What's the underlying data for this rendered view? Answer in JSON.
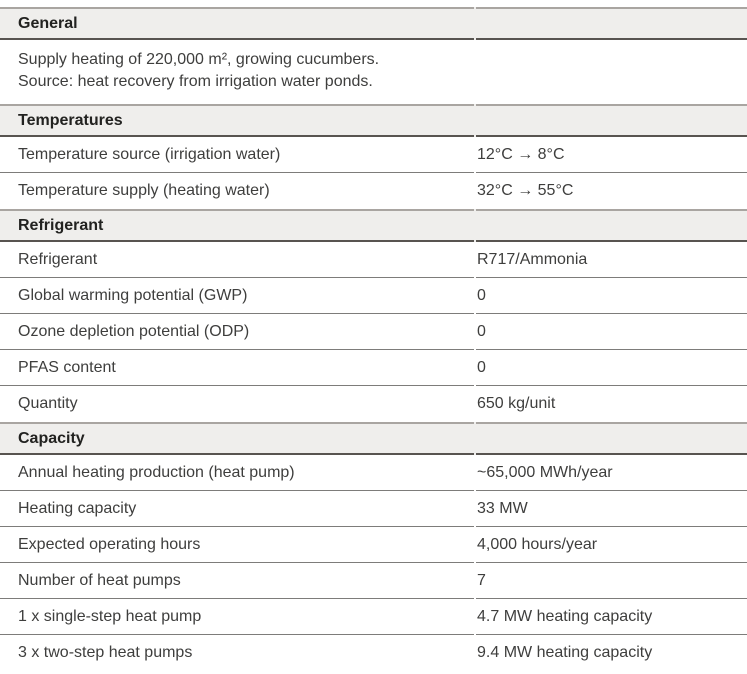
{
  "sections": {
    "general": {
      "title": "General",
      "lines": [
        "Supply heating of 220,000 m², growing cucumbers.",
        "Source: heat recovery from irrigation water ponds."
      ]
    },
    "temperatures": {
      "title": "Temperatures",
      "rows": [
        {
          "label": "Temperature source (irrigation water)",
          "value": "12°C → 8°C"
        },
        {
          "label": "Temperature supply (heating water)",
          "value": "32°C → 55°C"
        }
      ]
    },
    "refrigerant": {
      "title": "Refrigerant",
      "rows": [
        {
          "label": "Refrigerant",
          "value": "R717/Ammonia"
        },
        {
          "label": "Global warming potential (GWP)",
          "value": "0"
        },
        {
          "label": "Ozone depletion potential (ODP)",
          "value": "0"
        },
        {
          "label": "PFAS content",
          "value": "0"
        },
        {
          "label": "Quantity",
          "value": "650 kg/unit"
        }
      ]
    },
    "capacity": {
      "title": "Capacity",
      "rows": [
        {
          "label": "Annual heating production (heat pump)",
          "value": "~65,000 MWh/year"
        },
        {
          "label": "Heating capacity",
          "value": "33 MW"
        },
        {
          "label": "Expected operating hours",
          "value": "4,000 hours/year"
        },
        {
          "label": "Number of heat pumps",
          "value": "7"
        },
        {
          "label": "1 x single-step heat pump",
          "value": "4.7 MW heating capacity"
        },
        {
          "label": "3 x two-step heat pumps",
          "value": "9.4 MW heating capacity"
        }
      ]
    }
  },
  "colors": {
    "section_band_background": "#efeeec",
    "rule_above_header": "#a9a5a1",
    "rule_below_header": "#585450",
    "row_separator": "#7d7c7a",
    "body_text": "#3e3e3d",
    "header_text": "#222220"
  }
}
